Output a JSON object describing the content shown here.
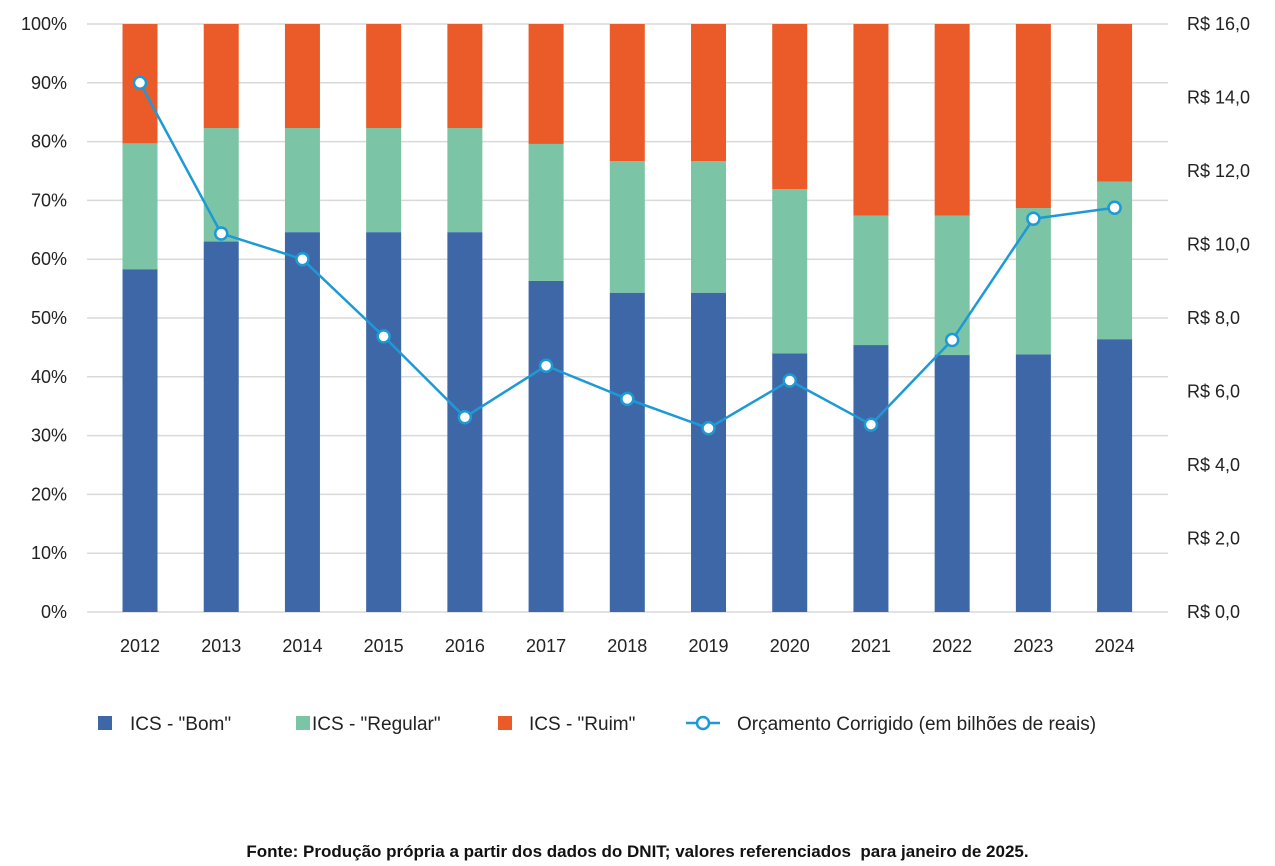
{
  "chart_data": {
    "type": "bar",
    "stacked": true,
    "categories": [
      "2012",
      "2013",
      "2014",
      "2015",
      "2016",
      "2017",
      "2018",
      "2019",
      "2020",
      "2021",
      "2022",
      "2023",
      "2024"
    ],
    "series": [
      {
        "name": "ICS - \"Bom\"",
        "color": "#3e67a8",
        "axis": "left",
        "values": [
          58.3,
          63.0,
          64.6,
          64.6,
          64.6,
          56.3,
          54.3,
          54.3,
          44.0,
          45.4,
          43.7,
          43.8,
          46.4
        ]
      },
      {
        "name": "ICS - \"Regular\"",
        "color": "#7bc4a5",
        "axis": "left",
        "values": [
          21.4,
          19.3,
          17.7,
          17.7,
          17.7,
          23.3,
          22.4,
          22.4,
          27.9,
          22.0,
          23.7,
          24.9,
          26.8
        ]
      },
      {
        "name": "ICS - \"Ruim\"",
        "color": "#eb5b29",
        "axis": "left",
        "values": [
          20.3,
          17.7,
          17.7,
          17.7,
          17.7,
          20.4,
          23.3,
          23.3,
          28.1,
          32.6,
          32.6,
          31.3,
          26.8
        ]
      }
    ],
    "line_series": {
      "name": "Orçamento Corrigido (em bilhões de reais)",
      "type": "line",
      "color": "#1d9ad6",
      "axis": "right",
      "values": [
        14.4,
        10.3,
        9.6,
        7.5,
        5.3,
        6.7,
        5.8,
        5.0,
        6.3,
        5.1,
        7.4,
        10.7,
        11.0
      ]
    },
    "y_left": {
      "ylim": [
        0,
        100
      ],
      "ticks": [
        "0%",
        "10%",
        "20%",
        "30%",
        "40%",
        "50%",
        "60%",
        "70%",
        "80%",
        "90%",
        "100%"
      ]
    },
    "y_right": {
      "ylim": [
        0,
        16
      ],
      "ticks": [
        "R$ 0,0",
        "R$ 2,0",
        "R$ 4,0",
        "R$ 6,0",
        "R$ 8,0",
        "R$ 10,0",
        "R$ 12,0",
        "R$ 14,0",
        "R$ 16,0"
      ]
    },
    "grid": true,
    "legend_position": "bottom",
    "title": "",
    "xlabel": "",
    "ylabel": ""
  },
  "legend": [
    {
      "label": "ICS - \"Bom\"",
      "color": "#3e67a8",
      "kind": "square"
    },
    {
      "label": "ICS - \"Regular\"",
      "color": "#7bc4a5",
      "kind": "square"
    },
    {
      "label": "ICS - \"Ruim\"",
      "color": "#eb5b29",
      "kind": "square"
    },
    {
      "label": "Orçamento Corrigido (em bilhões de reais)",
      "color": "#1d9ad6",
      "kind": "line-marker"
    }
  ],
  "footer": {
    "text": "Fonte: Produção própria a partir dos dados do DNIT; valores referenciados  para janeiro de 2025."
  }
}
